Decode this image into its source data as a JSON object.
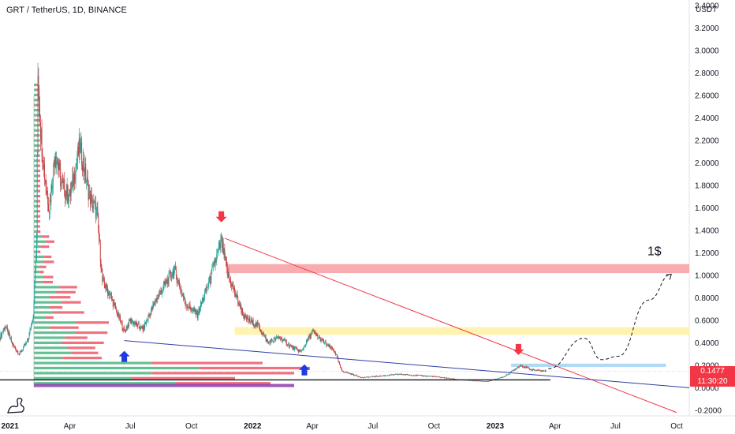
{
  "header": {
    "symbol_line": "GRT / TetherUS, 1D, BINANCE"
  },
  "chart_data": {
    "type": "candlestick",
    "symbol": "GRT / TetherUS",
    "interval": "1D",
    "exchange": "BINANCE",
    "y_unit": "USDT",
    "ylim": [
      -0.25,
      3.45
    ],
    "y_ticks": [
      "3.4000",
      "3.2000",
      "3.0000",
      "2.8000",
      "2.6000",
      "2.4000",
      "2.2000",
      "2.0000",
      "1.8000",
      "1.6000",
      "1.4000",
      "1.2000",
      "1.0000",
      "0.8000",
      "0.6000",
      "0.4000",
      "0.2000",
      "0.0000",
      "-0.2000"
    ],
    "y_tick_values": [
      3.4,
      3.2,
      3.0,
      2.8,
      2.6,
      2.4,
      2.2,
      2.0,
      1.8,
      1.6,
      1.4,
      1.2,
      1.0,
      0.8,
      0.6,
      0.4,
      0.2,
      0.0,
      -0.2
    ],
    "x_ticks": [
      {
        "label": "2021",
        "date": "2021-01-01",
        "bold": true
      },
      {
        "label": "Apr",
        "date": "2021-04-01",
        "bold": false
      },
      {
        "label": "Jul",
        "date": "2021-07-01",
        "bold": false
      },
      {
        "label": "Oct",
        "date": "2021-10-01",
        "bold": false
      },
      {
        "label": "2022",
        "date": "2022-01-01",
        "bold": true
      },
      {
        "label": "Apr",
        "date": "2022-04-01",
        "bold": false
      },
      {
        "label": "Jul",
        "date": "2022-07-01",
        "bold": false
      },
      {
        "label": "Oct",
        "date": "2022-10-01",
        "bold": false
      },
      {
        "label": "2023",
        "date": "2023-01-01",
        "bold": true
      },
      {
        "label": "Apr",
        "date": "2023-04-01",
        "bold": false
      },
      {
        "label": "Jul",
        "date": "2023-07-01",
        "bold": false
      },
      {
        "label": "Oct",
        "date": "2023-10-01",
        "bold": false
      }
    ],
    "x_range": [
      "2020-12-17",
      "2023-10-20"
    ],
    "price_path": [
      {
        "date": "2020-12-17",
        "close": 0.45
      },
      {
        "date": "2020-12-25",
        "close": 0.55
      },
      {
        "date": "2021-01-05",
        "close": 0.38
      },
      {
        "date": "2021-01-15",
        "close": 0.3
      },
      {
        "date": "2021-01-28",
        "close": 0.42
      },
      {
        "date": "2021-02-05",
        "close": 0.65
      },
      {
        "date": "2021-02-10",
        "close": 1.3
      },
      {
        "date": "2021-02-12",
        "close": 2.85
      },
      {
        "date": "2021-02-16",
        "close": 2.3
      },
      {
        "date": "2021-02-22",
        "close": 1.9
      },
      {
        "date": "2021-03-01",
        "close": 1.6
      },
      {
        "date": "2021-03-10",
        "close": 2.1
      },
      {
        "date": "2021-03-20",
        "close": 1.8
      },
      {
        "date": "2021-04-01",
        "close": 1.7
      },
      {
        "date": "2021-04-16",
        "close": 2.15
      },
      {
        "date": "2021-05-01",
        "close": 1.7
      },
      {
        "date": "2021-05-12",
        "close": 1.55
      },
      {
        "date": "2021-05-20",
        "close": 0.95
      },
      {
        "date": "2021-06-01",
        "close": 0.82
      },
      {
        "date": "2021-06-22",
        "close": 0.5
      },
      {
        "date": "2021-07-01",
        "close": 0.6
      },
      {
        "date": "2021-07-20",
        "close": 0.52
      },
      {
        "date": "2021-08-10",
        "close": 0.8
      },
      {
        "date": "2021-09-05",
        "close": 1.05
      },
      {
        "date": "2021-09-22",
        "close": 0.75
      },
      {
        "date": "2021-10-10",
        "close": 0.65
      },
      {
        "date": "2021-10-28",
        "close": 0.95
      },
      {
        "date": "2021-11-15",
        "close": 1.3
      },
      {
        "date": "2021-11-25",
        "close": 1.0
      },
      {
        "date": "2021-12-05",
        "close": 0.85
      },
      {
        "date": "2021-12-20",
        "close": 0.62
      },
      {
        "date": "2022-01-10",
        "close": 0.55
      },
      {
        "date": "2022-01-24",
        "close": 0.4
      },
      {
        "date": "2022-02-10",
        "close": 0.45
      },
      {
        "date": "2022-03-01",
        "close": 0.36
      },
      {
        "date": "2022-03-15",
        "close": 0.32
      },
      {
        "date": "2022-04-01",
        "close": 0.5
      },
      {
        "date": "2022-04-15",
        "close": 0.42
      },
      {
        "date": "2022-05-05",
        "close": 0.32
      },
      {
        "date": "2022-05-15",
        "close": 0.15
      },
      {
        "date": "2022-06-15",
        "close": 0.09
      },
      {
        "date": "2022-08-10",
        "close": 0.12
      },
      {
        "date": "2022-10-01",
        "close": 0.1
      },
      {
        "date": "2022-11-10",
        "close": 0.07
      },
      {
        "date": "2022-12-20",
        "close": 0.055
      },
      {
        "date": "2023-01-15",
        "close": 0.1
      },
      {
        "date": "2023-02-08",
        "close": 0.2
      },
      {
        "date": "2023-02-25",
        "close": 0.16
      },
      {
        "date": "2023-03-14",
        "close": 0.15
      },
      {
        "date": "2023-03-18",
        "close": 0.1477
      }
    ],
    "last_price": "0.1477",
    "countdown": "11:30:20",
    "zones": [
      {
        "name": "resistance-red",
        "from": 1.02,
        "to": 1.1,
        "start": "2021-11-22",
        "end": "2023-10-20",
        "color": "#f7a3a7"
      },
      {
        "name": "resistance-yellow",
        "from": 0.47,
        "to": 0.54,
        "start": "2021-12-05",
        "end": "2023-10-20",
        "color": "#fff2a8"
      },
      {
        "name": "support-blue",
        "from": 0.185,
        "to": 0.215,
        "start": "2023-01-25",
        "end": "2023-09-15",
        "color": "#a9d6f5"
      }
    ],
    "trendlines": [
      {
        "name": "red-downtrend",
        "from": {
          "date": "2021-11-20",
          "price": 1.33
        },
        "to": {
          "date": "2023-10-01",
          "price": -0.22
        },
        "color": "#f23645"
      },
      {
        "name": "blue-support",
        "from": {
          "date": "2021-06-22",
          "price": 0.42
        },
        "to": {
          "date": "2023-10-20",
          "price": 0.0
        },
        "color": "#2f3ea5"
      },
      {
        "name": "black-base",
        "from": {
          "date": "2020-12-17",
          "price": 0.07
        },
        "to": {
          "date": "2023-03-25",
          "price": 0.07
        },
        "color": "#131722"
      }
    ],
    "projection": [
      {
        "date": "2023-03-22",
        "price": 0.17
      },
      {
        "date": "2023-05-15",
        "price": 0.44
      },
      {
        "date": "2023-06-10",
        "price": 0.25
      },
      {
        "date": "2023-07-05",
        "price": 0.28
      },
      {
        "date": "2023-08-20",
        "price": 0.78
      },
      {
        "date": "2023-09-23",
        "price": 1.01
      }
    ],
    "arrows": [
      {
        "dir": "down",
        "date": "2021-11-15",
        "price": 1.5,
        "color": "#f23645"
      },
      {
        "dir": "up",
        "date": "2021-06-22",
        "price": 0.3,
        "color": "#1f3ae0"
      },
      {
        "dir": "up",
        "date": "2022-03-20",
        "price": 0.18,
        "color": "#1f3ae0"
      },
      {
        "dir": "down",
        "date": "2023-02-05",
        "price": 0.32,
        "color": "#f23645"
      }
    ],
    "annotations": [
      {
        "text": "1$",
        "date": "2023-08-18",
        "price": 1.18
      }
    ],
    "volume_profile": {
      "note": "horizontal volume-by-price histogram on the left (green=buy, red=sell)",
      "green": "#53b987",
      "red": "#eb4d5c"
    },
    "colors": {
      "up": "#26a69a",
      "down": "#ef5350",
      "candle": "#c83b3b"
    }
  }
}
